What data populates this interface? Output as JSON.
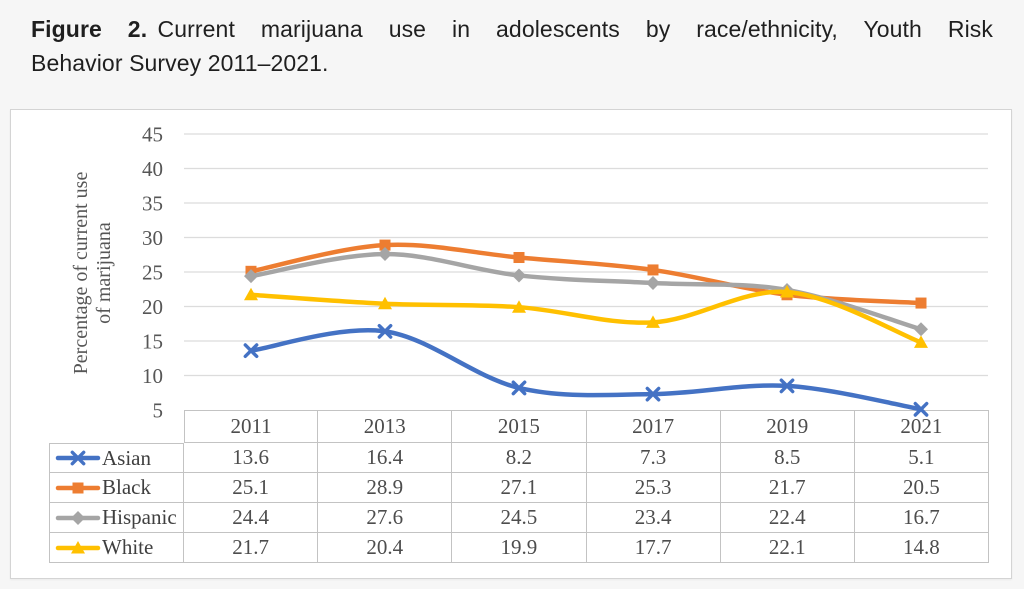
{
  "caption": {
    "line1_bold": "Figure 2.",
    "line1_rest": "Current marijuana use in adolescents by race/ethnicity, Youth Risk",
    "line2": "Behavior Survey 2011–2021."
  },
  "chart_data": {
    "type": "line",
    "title": "",
    "ylabel": "Percentage of current use of marijuana",
    "ylabel_lines": [
      "Percentage of current use",
      "of marijuana"
    ],
    "xlabel": "",
    "categories": [
      "2011",
      "2013",
      "2015",
      "2017",
      "2019",
      "2021"
    ],
    "series": [
      {
        "name": "Asian",
        "color": "#4472C4",
        "marker": "x",
        "values": [
          13.6,
          16.4,
          8.2,
          7.3,
          8.5,
          5.1
        ]
      },
      {
        "name": "Black",
        "color": "#ED7D31",
        "marker": "square",
        "values": [
          25.1,
          28.9,
          27.1,
          25.3,
          21.7,
          20.5
        ]
      },
      {
        "name": "Hispanic",
        "color": "#A5A5A5",
        "marker": "diamond",
        "values": [
          24.4,
          27.6,
          24.5,
          23.4,
          22.4,
          16.7
        ]
      },
      {
        "name": "White",
        "color": "#FFC000",
        "marker": "triangle",
        "values": [
          21.7,
          20.4,
          19.9,
          17.7,
          22.1,
          14.8
        ]
      }
    ],
    "yticks": [
      5,
      10,
      15,
      20,
      25,
      30,
      35,
      40,
      45
    ],
    "ylim": [
      5,
      45
    ],
    "grid": true,
    "smoothed_lines": true,
    "legend_position": "table-left-column",
    "colors": {
      "gridline": "#dcdcdc",
      "axis_text": "#565656",
      "table_border": "#c3c3c3"
    }
  }
}
